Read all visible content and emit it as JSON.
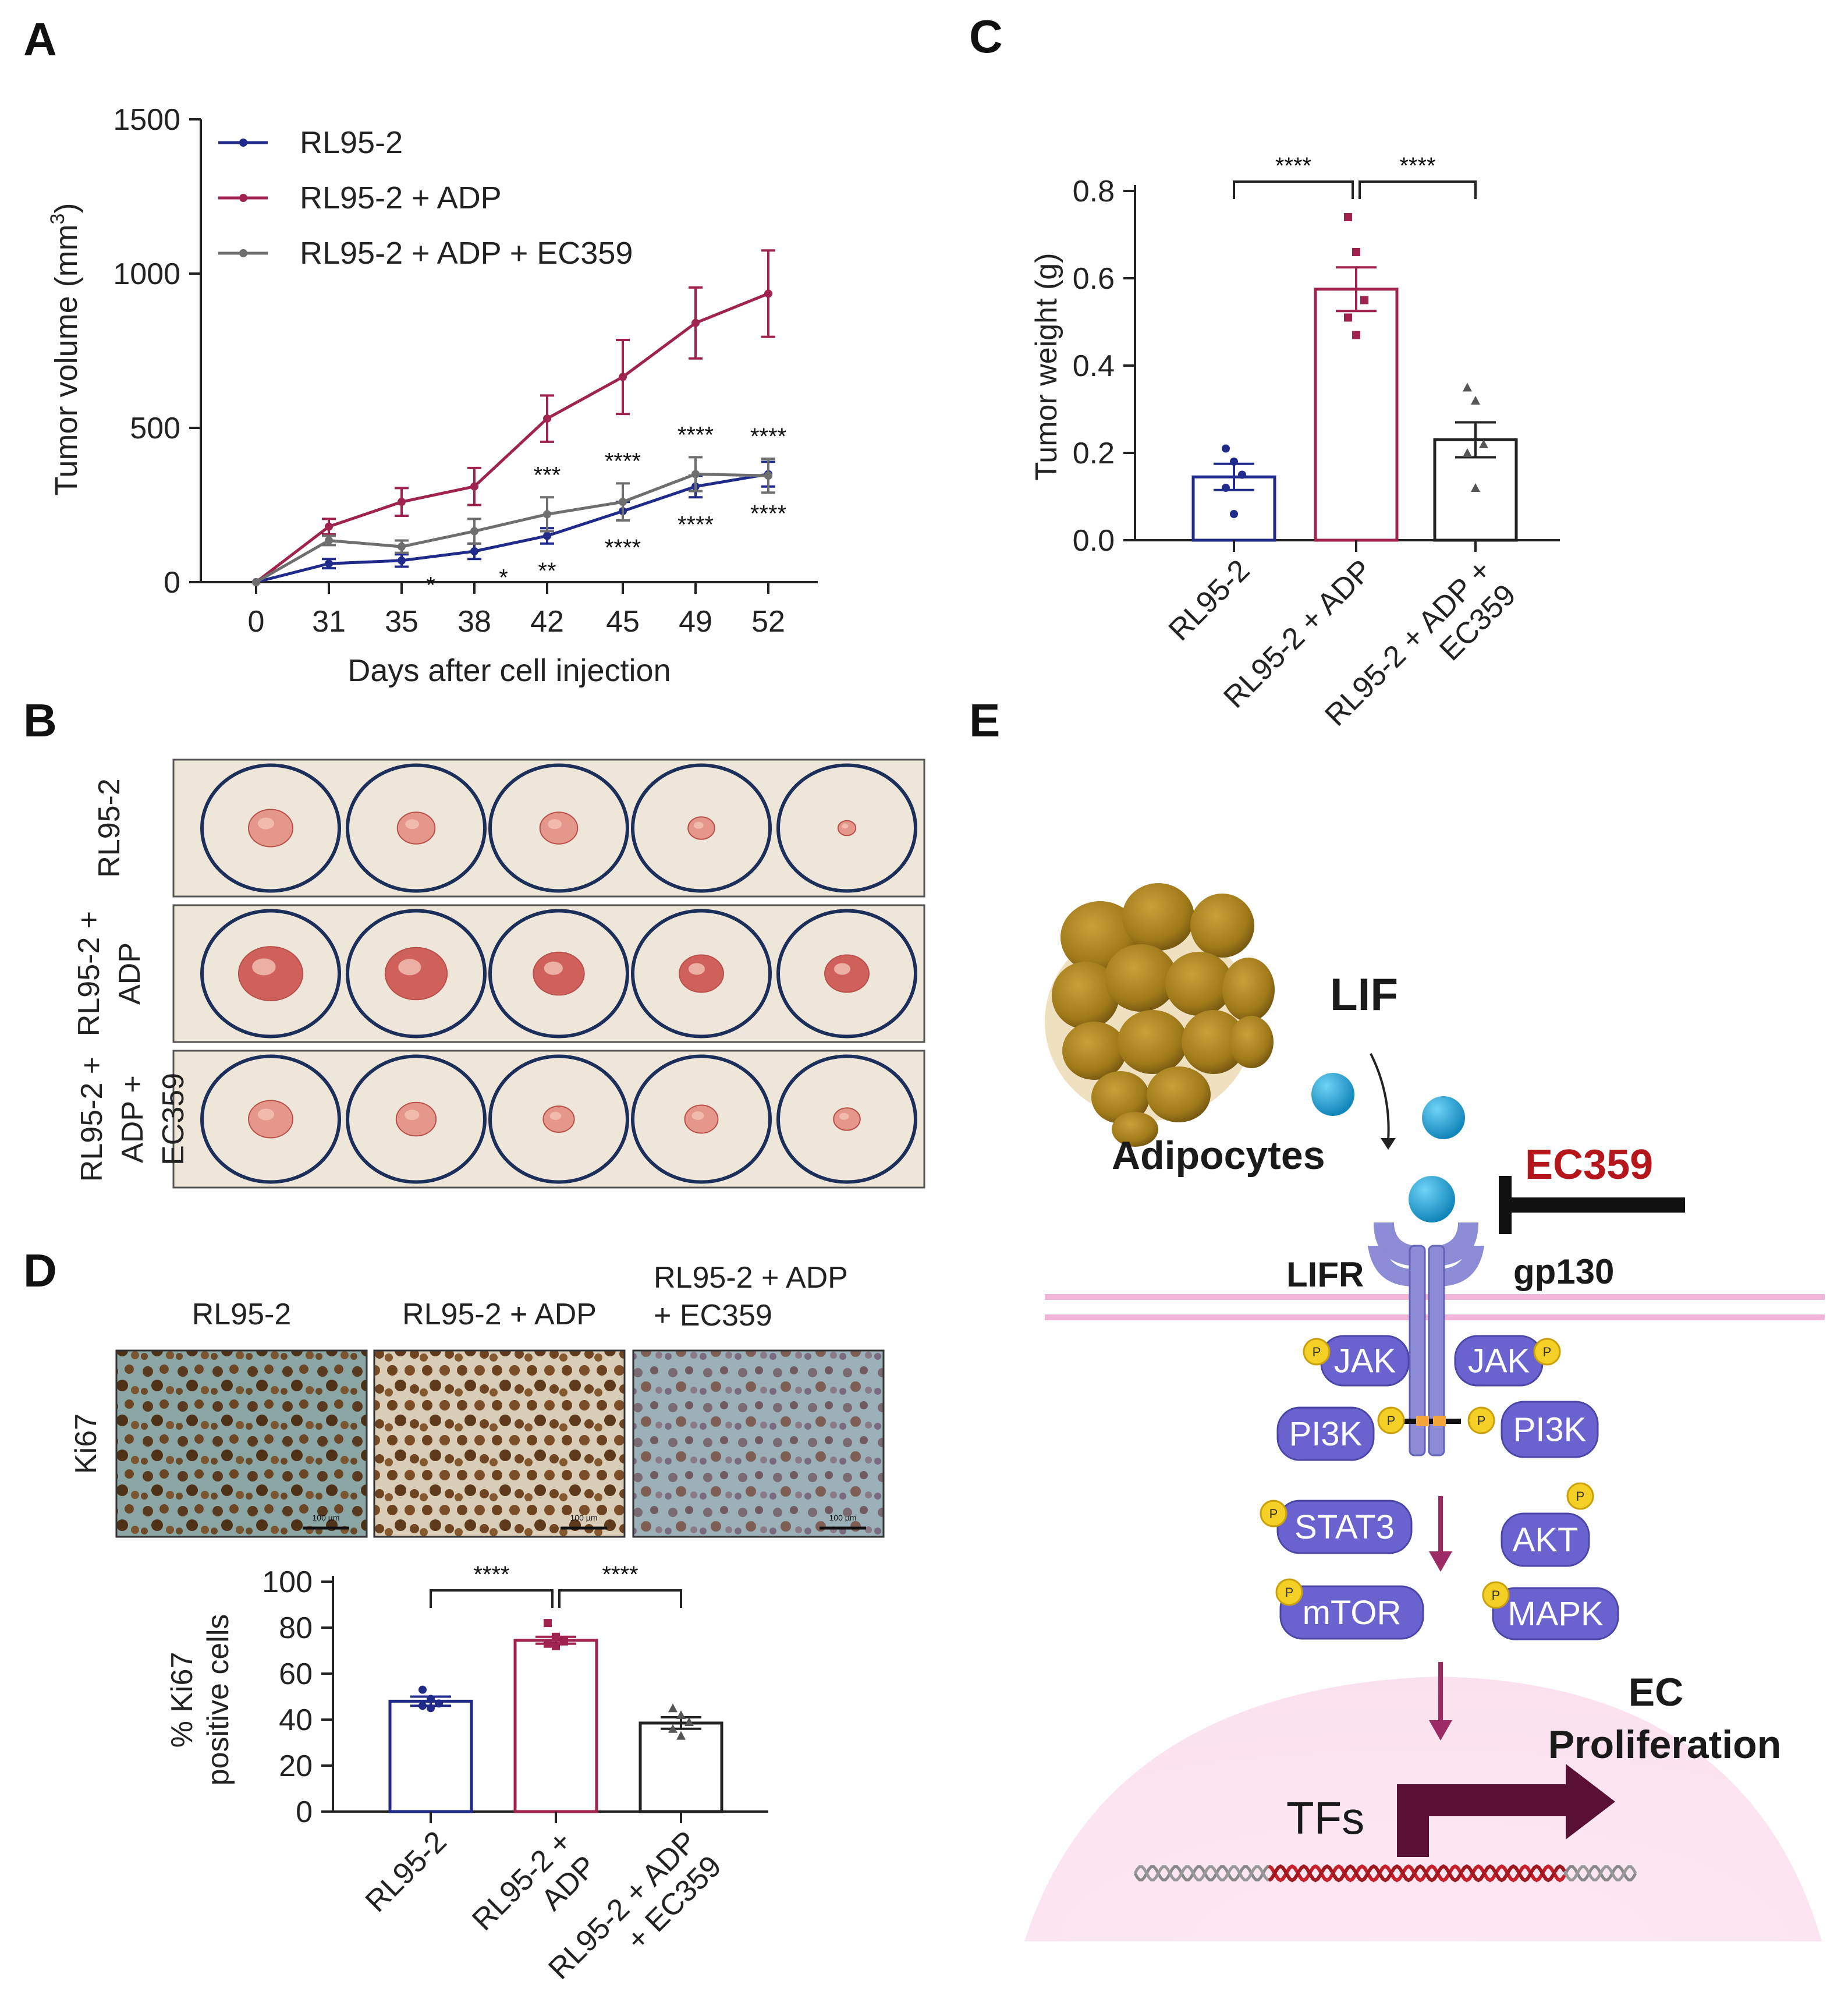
{
  "panels": {
    "A": "A",
    "B": "B",
    "C": "C",
    "D": "D",
    "E": "E"
  },
  "colors": {
    "blue": "#1f2a8a",
    "red": "#a0224f",
    "grey": "#6e6e6e",
    "tray": "#efe6da",
    "ring": "#1c2f5a",
    "protein": "#6a63cf",
    "lif": "#1a9fd4",
    "phospho": "#f4cf25",
    "arrow": "#9c2a64",
    "tf_arrow": "#5a0f35",
    "nucleus": "#fbe6f1",
    "membrane": "#f1b5d9",
    "ec359": "#b5161b"
  },
  "chart_data": [
    {
      "panel": "A",
      "type": "line",
      "x": [
        0,
        31,
        35,
        38,
        42,
        45,
        49,
        52
      ],
      "xlabel": "Days after cell injection",
      "ylabel": "Tumor volume (mm",
      "ylabel_sup": "3",
      "ylabel_end": ")",
      "ylim": [
        0,
        1500
      ],
      "yticks": [
        0,
        500,
        1000,
        1500
      ],
      "series": [
        {
          "name": "RL95-2",
          "values": [
            0,
            60,
            70,
            100,
            150,
            230,
            310,
            350
          ],
          "errors": [
            0,
            15,
            20,
            25,
            25,
            30,
            35,
            40
          ]
        },
        {
          "name": "RL95-2 + ADP",
          "values": [
            0,
            180,
            260,
            310,
            530,
            665,
            840,
            935
          ],
          "errors": [
            0,
            25,
            45,
            60,
            75,
            120,
            115,
            140
          ]
        },
        {
          "name": "RL95-2 + ADP + EC359",
          "values": [
            0,
            135,
            115,
            165,
            220,
            260,
            350,
            345
          ],
          "errors": [
            0,
            15,
            20,
            40,
            55,
            60,
            55,
            55
          ]
        }
      ],
      "sig_upper": [
        "",
        "",
        "",
        "",
        "***",
        "****",
        "****",
        "****"
      ],
      "sig_lower": [
        "",
        "",
        "*",
        "*",
        "**",
        "****",
        "****",
        "****"
      ]
    },
    {
      "panel": "C",
      "type": "bar",
      "categories": [
        "RL95-2",
        "RL95-2 + ADP",
        "RL95-2 + ADP + EC359"
      ],
      "values": [
        0.145,
        0.575,
        0.23
      ],
      "errors": [
        0.03,
        0.05,
        0.04
      ],
      "points": [
        [
          0.21,
          0.18,
          0.15,
          0.12,
          0.06
        ],
        [
          0.74,
          0.66,
          0.55,
          0.51,
          0.47
        ],
        [
          0.35,
          0.32,
          0.22,
          0.2,
          0.12
        ]
      ],
      "ylabel": "Tumor weight (g)",
      "ylim": [
        0,
        0.8
      ],
      "yticks": [
        "0.0",
        "0.2",
        "0.4",
        "0.6",
        "0.8"
      ],
      "xtick_lines": [
        [
          "RL95-2"
        ],
        [
          "RL95-2 + ADP"
        ],
        [
          "RL95-2 + ADP +",
          "EC359"
        ]
      ],
      "significance": [
        "****",
        "****"
      ]
    },
    {
      "panel": "D",
      "type": "bar",
      "categories": [
        "RL95-2",
        "RL95-2 + ADP",
        "RL95-2 + ADP + EC359"
      ],
      "values": [
        48,
        74.5,
        38.5
      ],
      "errors": [
        2,
        1.5,
        2.5
      ],
      "points": [
        [
          53,
          49,
          47,
          46,
          45
        ],
        [
          82,
          76,
          74,
          73,
          72
        ],
        [
          45,
          42,
          39,
          36,
          33
        ]
      ],
      "ylabel_lines": [
        "% Ki67",
        "positive cells"
      ],
      "ylim": [
        0,
        100
      ],
      "yticks": [
        0,
        20,
        40,
        60,
        80,
        100
      ],
      "xtick_lines": [
        [
          "RL95-2"
        ],
        [
          "RL95-2 +",
          "ADP"
        ],
        [
          "RL95-2 + ADP",
          "+ EC359"
        ]
      ],
      "significance": [
        "****",
        "****"
      ]
    }
  ],
  "panel_b": {
    "row_labels": [
      [
        "RL95-2"
      ],
      [
        "RL95-2 +",
        "ADP"
      ],
      [
        "RL95-2 +",
        "ADP +",
        "EC359"
      ]
    ],
    "tumor_sizes": [
      [
        1.0,
        0.85,
        0.85,
        0.6,
        0.4
      ],
      [
        1.45,
        1.4,
        1.15,
        1.0,
        1.0
      ],
      [
        1.0,
        0.9,
        0.7,
        0.75,
        0.6
      ]
    ]
  },
  "panel_d": {
    "image_titles": [
      [
        "RL95-2"
      ],
      [
        "RL95-2  + ADP"
      ],
      [
        "RL95-2  + ADP",
        "+ EC359"
      ]
    ],
    "row_label": "Ki67",
    "scale_bar": "100 µm"
  },
  "panel_e": {
    "adipocytes": "Adipocytes",
    "lif": "LIF",
    "ec359": "EC359",
    "lifr": "LIFR",
    "gp130": "gp130",
    "phospho": "P",
    "proteins": [
      "JAK",
      "JAK",
      "PI3K",
      "PI3K",
      "STAT3",
      "AKT",
      "mTOR",
      "MAPK"
    ],
    "outcome": [
      "EC",
      "Proliferation"
    ],
    "tfs": "TFs"
  }
}
